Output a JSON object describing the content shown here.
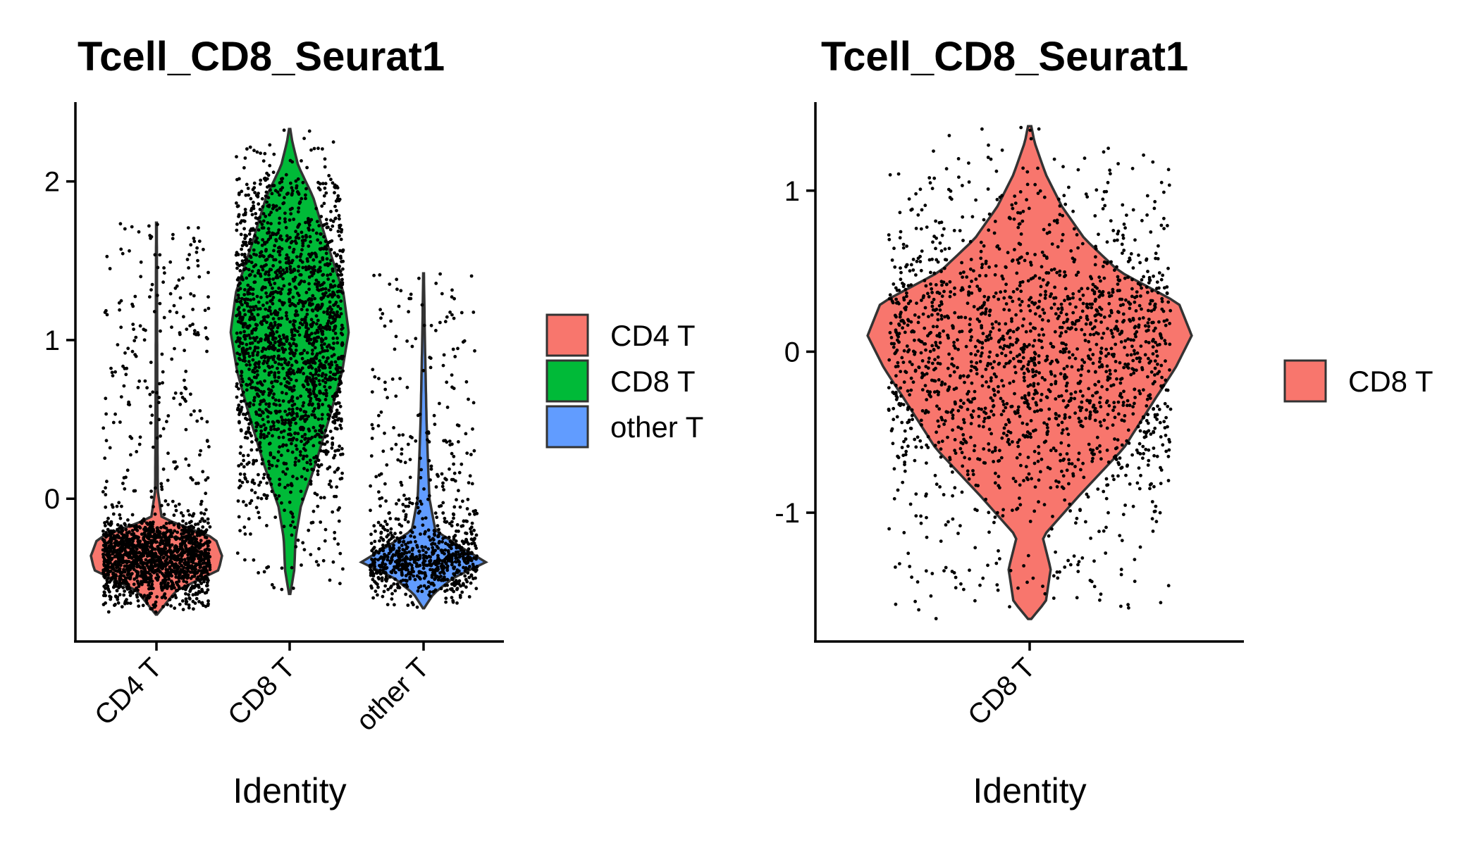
{
  "chart_data": [
    {
      "type": "violin",
      "title": "Tcell_CD8_Seurat1",
      "xlabel": "Identity",
      "ylabel": "",
      "ylim": [
        -0.9,
        2.5
      ],
      "yticks": [
        0,
        1,
        2
      ],
      "ytick_labels": [
        "0",
        "1",
        "2"
      ],
      "categories": [
        "CD4 T",
        "CD8 T",
        "other T"
      ],
      "grid": false,
      "legend_position": "right",
      "legend": [
        "CD4 T",
        "CD8 T",
        "other T"
      ],
      "series": [
        {
          "category": "CD4 T",
          "color": "#F8766D",
          "y_min": -0.73,
          "y_max": 1.74,
          "mode": -0.36,
          "n_points": 1700,
          "profile": [
            [
              -0.73,
              0.01
            ],
            [
              -0.58,
              0.3
            ],
            [
              -0.45,
              0.95
            ],
            [
              -0.36,
              1.0
            ],
            [
              -0.25,
              0.9
            ],
            [
              -0.12,
              0.08
            ],
            [
              0.05,
              0.02
            ],
            [
              0.4,
              0.015
            ],
            [
              1.0,
              0.01
            ],
            [
              1.74,
              0.005
            ]
          ]
        },
        {
          "category": "CD8 T",
          "color": "#00BA38",
          "y_min": -0.6,
          "y_max": 2.33,
          "mode": 1.05,
          "n_points": 1900,
          "profile": [
            [
              -0.6,
              0.01
            ],
            [
              -0.45,
              0.07
            ],
            [
              -0.25,
              0.09
            ],
            [
              -0.05,
              0.17
            ],
            [
              0.2,
              0.38
            ],
            [
              0.5,
              0.6
            ],
            [
              0.8,
              0.8
            ],
            [
              1.05,
              0.9
            ],
            [
              1.3,
              0.82
            ],
            [
              1.6,
              0.58
            ],
            [
              1.9,
              0.36
            ],
            [
              2.1,
              0.13
            ],
            [
              2.25,
              0.04
            ],
            [
              2.33,
              0.01
            ]
          ]
        },
        {
          "category": "other T",
          "color": "#619CFF",
          "y_min": -0.69,
          "y_max": 1.42,
          "mode": -0.4,
          "n_points": 900,
          "profile": [
            [
              -0.69,
              0.01
            ],
            [
              -0.6,
              0.15
            ],
            [
              -0.5,
              0.45
            ],
            [
              -0.4,
              0.95
            ],
            [
              -0.3,
              0.55
            ],
            [
              -0.2,
              0.18
            ],
            [
              0.0,
              0.09
            ],
            [
              0.2,
              0.07
            ],
            [
              0.5,
              0.045
            ],
            [
              1.0,
              0.02
            ],
            [
              1.42,
              0.005
            ]
          ]
        }
      ]
    },
    {
      "type": "violin",
      "title": "Tcell_CD8_Seurat1",
      "xlabel": "Identity",
      "ylabel": "",
      "ylim": [
        -1.8,
        1.55
      ],
      "yticks": [
        -1,
        0,
        1
      ],
      "ytick_labels": [
        "-1",
        "0",
        "1"
      ],
      "categories": [
        "CD8 T"
      ],
      "grid": false,
      "legend_position": "right",
      "legend": [
        "CD8 T"
      ],
      "series": [
        {
          "category": "CD8 T",
          "color": "#F8766D",
          "y_min": -1.66,
          "y_max": 1.4,
          "mode": 0.1,
          "n_points": 1900,
          "profile": [
            [
              -1.66,
              0.01
            ],
            [
              -1.55,
              0.1
            ],
            [
              -1.35,
              0.13
            ],
            [
              -1.15,
              0.08
            ],
            [
              -0.9,
              0.3
            ],
            [
              -0.6,
              0.58
            ],
            [
              -0.3,
              0.77
            ],
            [
              -0.1,
              0.9
            ],
            [
              0.1,
              1.0
            ],
            [
              0.3,
              0.92
            ],
            [
              0.5,
              0.55
            ],
            [
              0.7,
              0.34
            ],
            [
              0.9,
              0.2
            ],
            [
              1.1,
              0.1
            ],
            [
              1.3,
              0.03
            ],
            [
              1.4,
              0.01
            ]
          ]
        }
      ]
    }
  ]
}
